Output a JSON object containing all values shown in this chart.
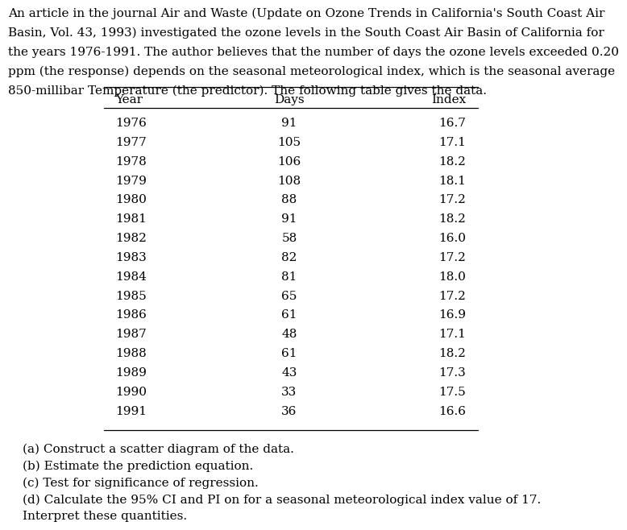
{
  "paragraph": "An article in the journal Air and Waste (Update on Ozone Trends in California's South Coast Air Basin, Vol. 43, 1993) investigated the ozone levels in the South Coast Air Basin of California for the years 1976-1991. The author believes that the number of days the ozone levels exceeded 0.20 ppm (the response) depends on the seasonal meteorological index, which is the seasonal average 850-millibar Temperature (the predictor). The following table gives the data.",
  "col_headers": [
    "Year",
    "Days",
    "Index"
  ],
  "years": [
    1976,
    1977,
    1978,
    1979,
    1980,
    1981,
    1982,
    1983,
    1984,
    1985,
    1986,
    1987,
    1988,
    1989,
    1990,
    1991
  ],
  "days": [
    91,
    105,
    106,
    108,
    88,
    91,
    58,
    82,
    81,
    65,
    61,
    48,
    61,
    43,
    33,
    36
  ],
  "index": [
    16.7,
    17.1,
    18.2,
    18.1,
    17.2,
    18.2,
    16.0,
    17.2,
    18.0,
    17.2,
    16.9,
    17.1,
    18.2,
    17.3,
    17.5,
    16.6
  ],
  "questions": [
    "(a) Construct a scatter diagram of the data.",
    "(b) Estimate the prediction equation.",
    "(c) Test for significance of regression.",
    "(d) Calculate the 95% CI and PI on for a seasonal meteorological index value of 17.",
    "Interpret these quantities."
  ],
  "bg_color": "#ffffff",
  "text_color": "#000000",
  "font_size": 11.0,
  "font_family": "DejaVu Serif",
  "para_line1": "An article in the journal Air and Waste (Update on Ozone Trends in California's South Coast Air",
  "para_line2": "Basin, Vol. 43, 1993) investigated the ozone levels in the South Coast Air Basin of California for",
  "para_line3": "the years 1976-1991. The author believes that the number of days the ozone levels exceeded 0.20",
  "para_line4": "ppm (the response) depends on the seasonal meteorological index, which is the seasonal average",
  "para_line5": "850-millibar Temperature (the predictor). The following table gives the data."
}
